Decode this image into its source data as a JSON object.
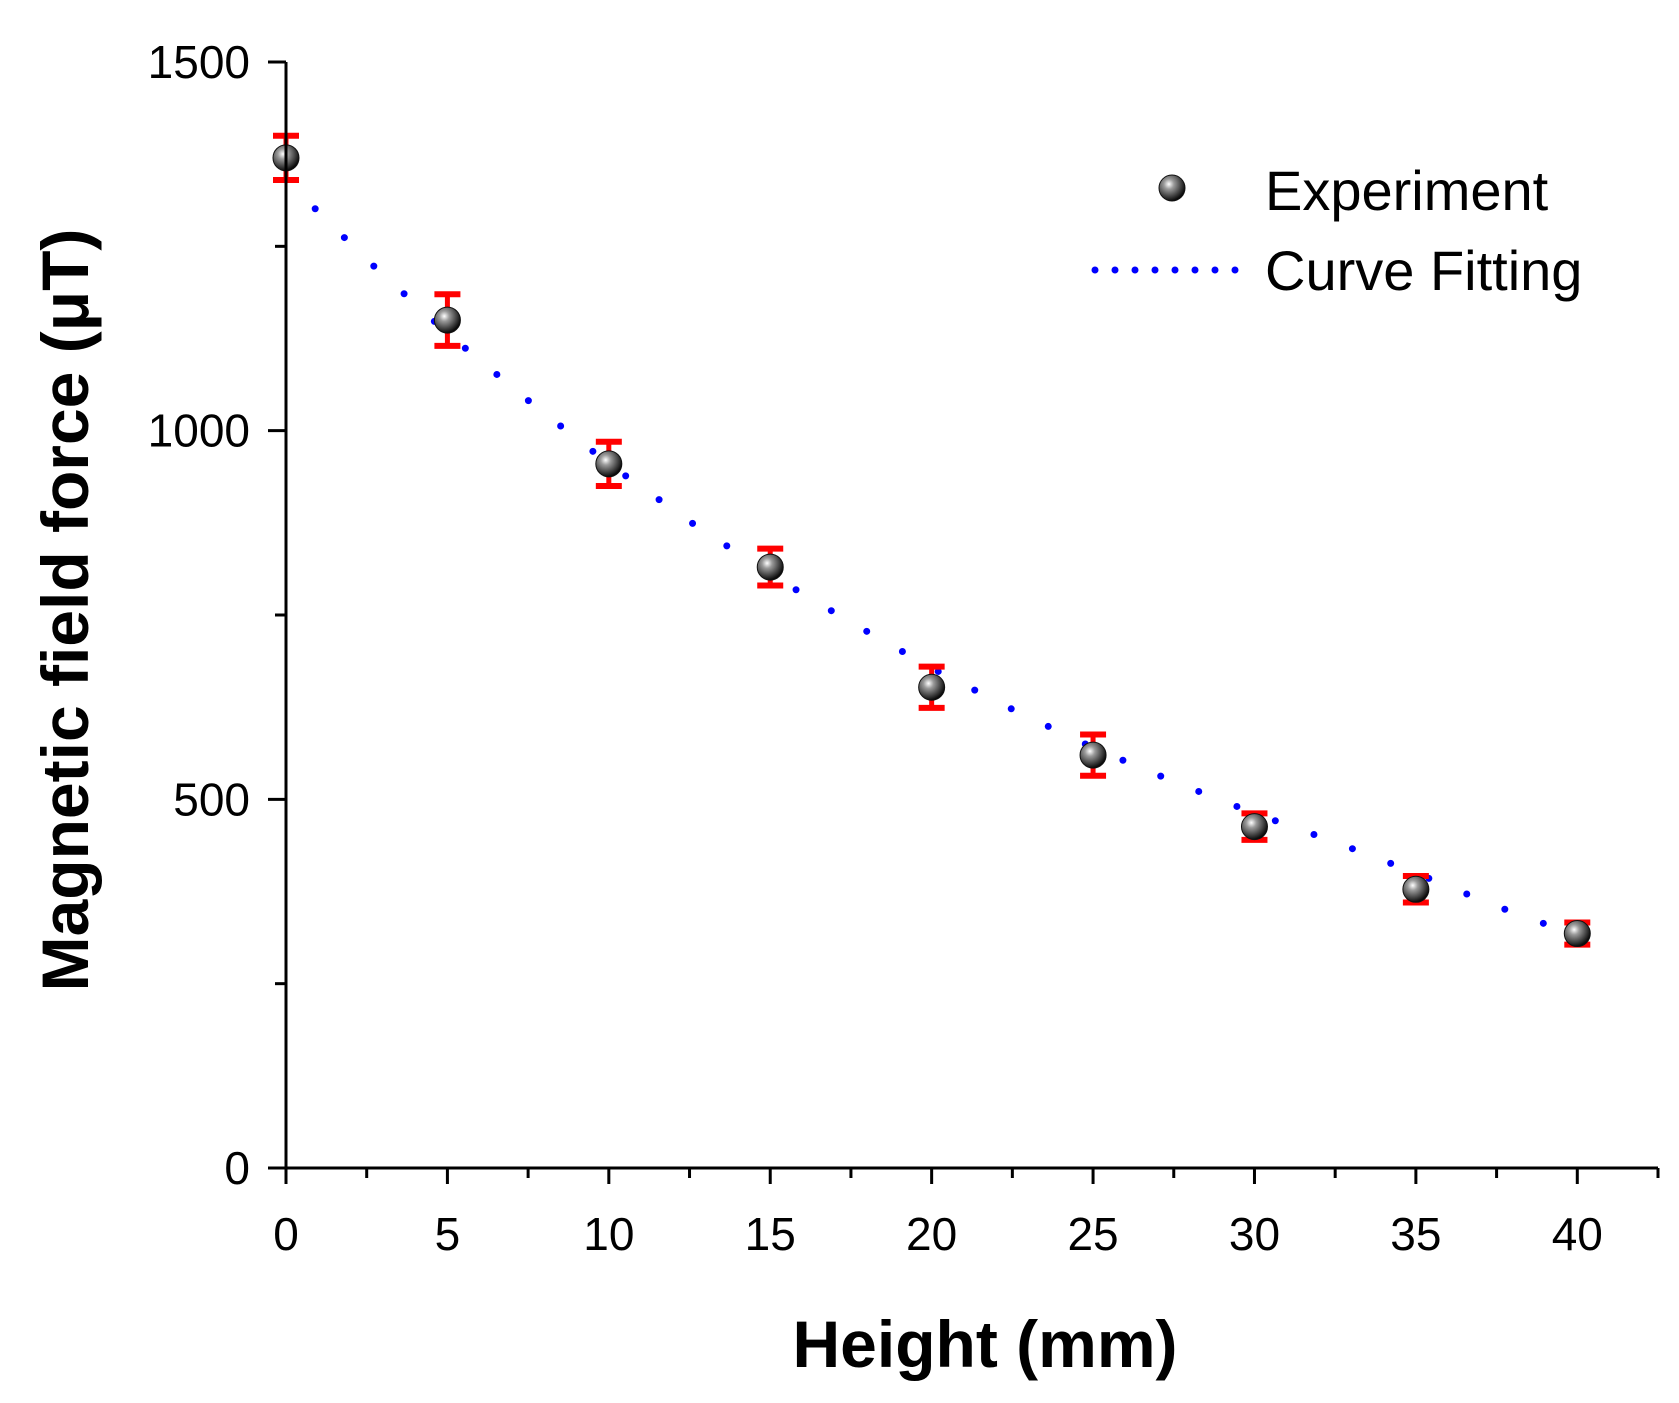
{
  "chart_data": {
    "type": "scatter",
    "title": "",
    "xlabel": "Height (mm)",
    "ylabel": "Magnetic field force (μT)",
    "xlim": [
      0,
      42.5
    ],
    "ylim": [
      0,
      1500
    ],
    "xticks": [
      "0",
      "5",
      "10",
      "15",
      "20",
      "25",
      "30",
      "35",
      "40"
    ],
    "yticks": [
      "0",
      "500",
      "1000",
      "1500"
    ],
    "legend_position": "top-right",
    "series": [
      {
        "name": "Experiment",
        "kind": "scatter_with_error",
        "x": [
          0,
          5,
          10,
          15,
          20,
          25,
          30,
          35,
          40
        ],
        "y": [
          1370,
          1150,
          955,
          815,
          652,
          560,
          463,
          378,
          318
        ],
        "error": [
          30,
          35,
          30,
          25,
          28,
          28,
          18,
          18,
          15
        ]
      },
      {
        "name": "Curve Fitting",
        "kind": "dotted_line",
        "x": [
          0,
          2.5,
          5,
          7.5,
          10,
          12.5,
          15,
          17.5,
          20,
          22.5,
          25,
          27.5,
          30,
          32.5,
          35,
          37.5,
          40
        ],
        "y": [
          1340,
          1232,
          1132,
          1041,
          955,
          877,
          805,
          740,
          678,
          622,
          570,
          524,
          481,
          442,
          400,
          355,
          315
        ]
      }
    ],
    "colors": {
      "marker": "#1a1a1a",
      "error_bar": "#ff0000",
      "fit_line": "#0000ff",
      "axis": "#000000"
    }
  }
}
